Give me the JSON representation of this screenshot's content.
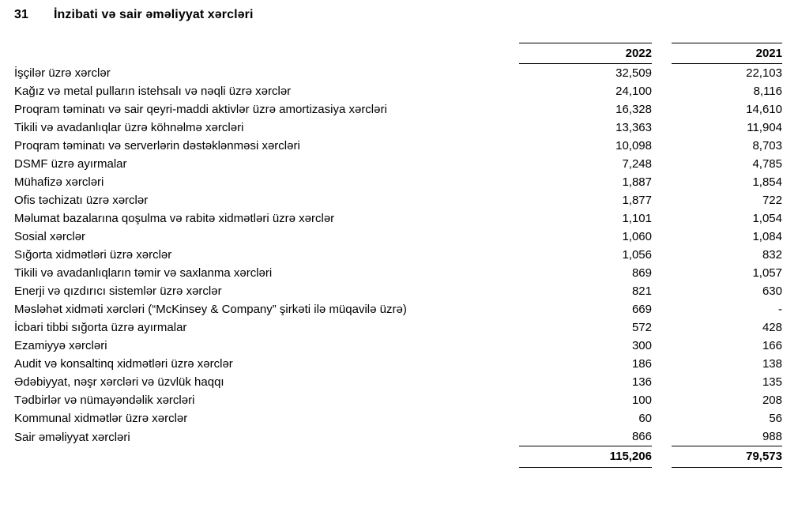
{
  "note": {
    "number": "31",
    "title": "İnzibati və sair əməliyyat xərcləri"
  },
  "table": {
    "columns": [
      "2022",
      "2021"
    ],
    "rows": [
      {
        "label": "İşçilər üzrə xərclər",
        "y2022": "32,509",
        "y2021": "22,103"
      },
      {
        "label": "Kağız və metal pulların istehsalı və nəqli üzrə xərclər",
        "y2022": "24,100",
        "y2021": "8,116"
      },
      {
        "label": "Proqram təminatı və sair qeyri-maddi aktivlər üzrə amortizasiya xərcləri",
        "y2022": "16,328",
        "y2021": "14,610"
      },
      {
        "label": "Tikili və avadanlıqlar üzrə köhnəlmə xərcləri",
        "y2022": "13,363",
        "y2021": "11,904"
      },
      {
        "label": "Proqram təminatı və serverlərin dəstəklənməsi xərcləri",
        "y2022": "10,098",
        "y2021": "8,703"
      },
      {
        "label": "DSMF üzrə ayırmalar",
        "y2022": "7,248",
        "y2021": "4,785"
      },
      {
        "label": "Mühafizə xərcləri",
        "y2022": "1,887",
        "y2021": "1,854"
      },
      {
        "label": "Ofis təchizatı üzrə xərclər",
        "y2022": "1,877",
        "y2021": "722"
      },
      {
        "label": "Məlumat bazalarına qoşulma və rabitə xidmətləri üzrə xərclər",
        "y2022": "1,101",
        "y2021": "1,054"
      },
      {
        "label": "Sosial xərclər",
        "y2022": "1,060",
        "y2021": "1,084"
      },
      {
        "label": "Sığorta xidmətləri üzrə xərclər",
        "y2022": "1,056",
        "y2021": "832"
      },
      {
        "label": "Tikili və avadanlıqların təmir və saxlanma xərcləri",
        "y2022": "869",
        "y2021": "1,057"
      },
      {
        "label": "Enerji və qızdırıcı sistemlər üzrə xərclər",
        "y2022": "821",
        "y2021": "630"
      },
      {
        "label": "Məsləhət xidməti xərcləri (“McKinsey & Company” şirkəti ilə müqavilə üzrə)",
        "y2022": "669",
        "y2021": "-"
      },
      {
        "label": "İcbari tibbi sığorta üzrə ayırmalar",
        "y2022": "572",
        "y2021": "428"
      },
      {
        "label": "Ezamiyyə xərcləri",
        "y2022": "300",
        "y2021": "166"
      },
      {
        "label": "Audit və konsaltinq xidmətləri üzrə xərclər",
        "y2022": "186",
        "y2021": "138"
      },
      {
        "label": "Ədəbiyyat, nəşr xərcləri və üzvlük haqqı",
        "y2022": "136",
        "y2021": "135"
      },
      {
        "label": "Tədbirlər və nümayəndəlik xərcləri",
        "y2022": "100",
        "y2021": "208"
      },
      {
        "label": "Kommunal xidmətlər üzrə xərclər",
        "y2022": "60",
        "y2021": "56"
      },
      {
        "label": "Sair əməliyyat xərcləri",
        "y2022": "866",
        "y2021": "988"
      }
    ],
    "total": {
      "y2022": "115,206",
      "y2021": "79,573"
    }
  }
}
